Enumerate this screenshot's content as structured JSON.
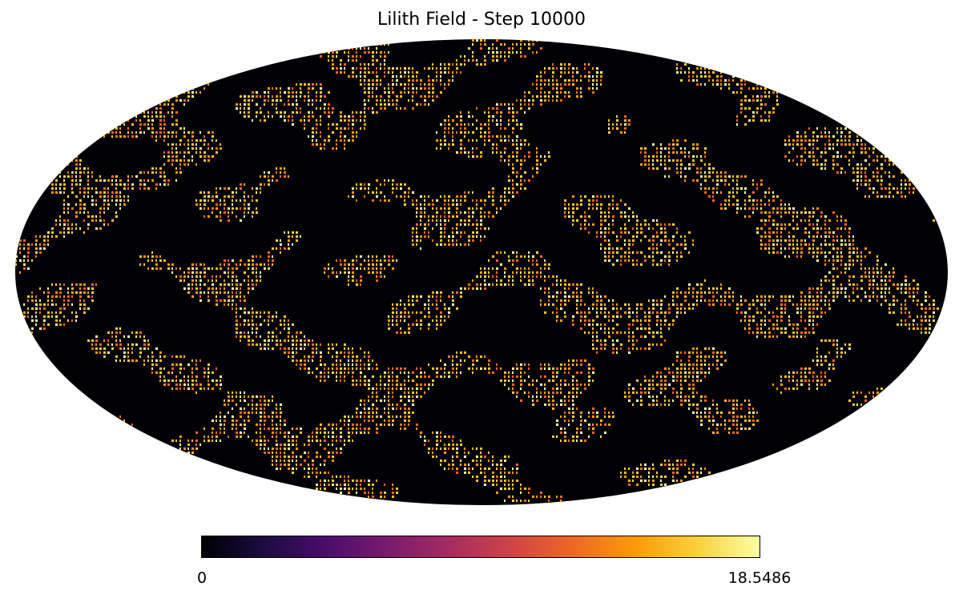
{
  "chart_data": {
    "type": "heatmap",
    "projection": "mollweide",
    "title": "Lilith Field - Step 10000",
    "colormap": "inferno",
    "colorbar": {
      "min": 0,
      "max": 18.5486,
      "tick_labels": [
        "0",
        "18.5486"
      ],
      "orientation": "horizontal",
      "placement": "bottom"
    },
    "background_color": "#000004",
    "dominant_colors": [
      "#000004",
      "#f98e09",
      "#fcffa4"
    ]
  }
}
